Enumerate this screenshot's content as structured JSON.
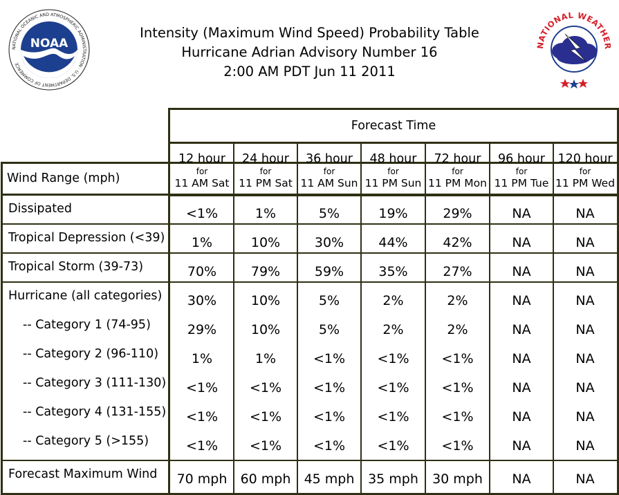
{
  "header": {
    "title_line1": "Intensity (Maximum Wind Speed) Probability Table",
    "title_line2": "Hurricane Adrian Advisory Number 16",
    "title_line3": "2:00 AM PDT Jun 11 2011"
  },
  "logos": {
    "noaa_text": "NOAA",
    "noaa_ring_text": "NATIONAL OCEANIC AND ATMOSPHERIC ADMINISTRATION · U.S. DEPARTMENT OF COMMERCE",
    "nws_ring_text": "NATIONAL WEATHER SERVICE"
  },
  "colors": {
    "border": "#2f2f14",
    "noaa_blue": "#1d3f8f",
    "nws_red": "#d4202a"
  },
  "chart_data": {
    "type": "table",
    "title": "Intensity (Maximum Wind Speed) Probability Table",
    "group_header": "Forecast Time",
    "row_header": "Wind Range (mph)",
    "columns": [
      {
        "hour": "12 hour",
        "for": "for",
        "time": "11 AM Sat"
      },
      {
        "hour": "24 hour",
        "for": "for",
        "time": "11 PM Sat"
      },
      {
        "hour": "36 hour",
        "for": "for",
        "time": "11 AM Sun"
      },
      {
        "hour": "48 hour",
        "for": "for",
        "time": "11 PM Sun"
      },
      {
        "hour": "72 hour",
        "for": "for",
        "time": "11 PM Mon"
      },
      {
        "hour": "96 hour",
        "for": "for",
        "time": "11 PM Tue"
      },
      {
        "hour": "120 hour",
        "for": "for",
        "time": "11 PM Wed"
      }
    ],
    "rows": [
      {
        "label": "Dissipated",
        "values": [
          "<1%",
          "1%",
          "5%",
          "19%",
          "29%",
          "NA",
          "NA"
        ]
      },
      {
        "label": "Tropical Depression (<39)",
        "values": [
          "1%",
          "10%",
          "30%",
          "44%",
          "42%",
          "NA",
          "NA"
        ]
      },
      {
        "label": "Tropical Storm (39-73)",
        "values": [
          "70%",
          "79%",
          "59%",
          "35%",
          "27%",
          "NA",
          "NA"
        ]
      },
      {
        "label": "Hurricane (all categories)",
        "values": [
          "30%",
          "10%",
          "5%",
          "2%",
          "2%",
          "NA",
          "NA"
        ]
      },
      {
        "label": "-- Category 1 (74-95)",
        "values": [
          "29%",
          "10%",
          "5%",
          "2%",
          "2%",
          "NA",
          "NA"
        ]
      },
      {
        "label": "-- Category 2 (96-110)",
        "values": [
          "1%",
          "1%",
          "<1%",
          "<1%",
          "<1%",
          "NA",
          "NA"
        ]
      },
      {
        "label": "-- Category 3 (111-130)",
        "values": [
          "<1%",
          "<1%",
          "<1%",
          "<1%",
          "<1%",
          "NA",
          "NA"
        ]
      },
      {
        "label": "-- Category 4 (131-155)",
        "values": [
          "<1%",
          "<1%",
          "<1%",
          "<1%",
          "<1%",
          "NA",
          "NA"
        ]
      },
      {
        "label": "-- Category 5 (>155)",
        "values": [
          "<1%",
          "<1%",
          "<1%",
          "<1%",
          "<1%",
          "NA",
          "NA"
        ]
      },
      {
        "label": "Forecast Maximum Wind",
        "values": [
          "70 mph",
          "60 mph",
          "45 mph",
          "35 mph",
          "30 mph",
          "NA",
          "NA"
        ]
      }
    ]
  }
}
